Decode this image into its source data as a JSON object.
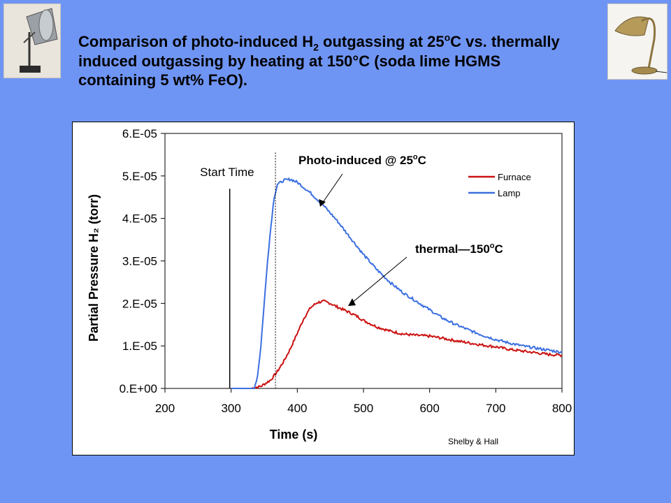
{
  "title": {
    "part1": "Comparison of photo-induced H",
    "sub": "2",
    "part2": " outgassing at 25",
    "sup": "o",
    "part3": "C vs. thermally induced outgassing by heating at 150°C (soda lime HGMS containing 5 wt% FeO)."
  },
  "images": {
    "left": "clamp-lamp-image",
    "right": "desk-lamp-image"
  },
  "chart_data": {
    "type": "line",
    "xlabel": "Time (s)",
    "ylabel": "Partial Pressure H₂ (torr)",
    "xlim": [
      200,
      800
    ],
    "ylim": [
      0,
      6e-05
    ],
    "x_ticks": [
      "200",
      "300",
      "400",
      "500",
      "600",
      "700",
      "800"
    ],
    "y_ticks": [
      "0.E+00",
      "1.E-05",
      "2.E-05",
      "3.E-05",
      "4.E-05",
      "5.E-05",
      "6.E-05"
    ],
    "legend_position": "top-right",
    "series": [
      {
        "name": "Furnace",
        "color": "#cc1111",
        "x": [
          300,
          330,
          345,
          360,
          370,
          380,
          390,
          400,
          410,
          420,
          430,
          440,
          450,
          460,
          470,
          480,
          490,
          500,
          520,
          540,
          560,
          580,
          600,
          620,
          640,
          660,
          680,
          700,
          720,
          740,
          760,
          780,
          800
        ],
        "y": [
          0,
          0,
          5e-07,
          2e-06,
          4e-06,
          6.5e-06,
          9.5e-06,
          1.3e-05,
          1.65e-05,
          1.9e-05,
          2.02e-05,
          2.05e-05,
          2e-05,
          1.92e-05,
          1.85e-05,
          1.78e-05,
          1.7e-05,
          1.6e-05,
          1.45e-05,
          1.35e-05,
          1.28e-05,
          1.25e-05,
          1.23e-05,
          1.18e-05,
          1.12e-05,
          1.07e-05,
          1.02e-05,
          9.8e-06,
          9.2e-06,
          8.8e-06,
          8.4e-06,
          8e-06,
          7.8e-06
        ]
      },
      {
        "name": "Lamp",
        "color": "#3a6fe0",
        "x": [
          300,
          335,
          340,
          345,
          350,
          355,
          360,
          365,
          370,
          375,
          380,
          390,
          400,
          420,
          440,
          460,
          480,
          500,
          520,
          540,
          560,
          580,
          600,
          620,
          640,
          660,
          680,
          700,
          720,
          740,
          760,
          780,
          800
        ],
        "y": [
          0,
          0,
          3e-06,
          1e-05,
          2e-05,
          3e-05,
          3.8e-05,
          4.5e-05,
          4.8e-05,
          4.85e-05,
          4.9e-05,
          4.92e-05,
          4.85e-05,
          4.6e-05,
          4.3e-05,
          3.95e-05,
          3.55e-05,
          3.15e-05,
          2.8e-05,
          2.5e-05,
          2.25e-05,
          2.05e-05,
          1.85e-05,
          1.65e-05,
          1.5e-05,
          1.37e-05,
          1.25e-05,
          1.15e-05,
          1.07e-05,
          1e-05,
          9.5e-06,
          9e-06,
          8.5e-06
        ]
      }
    ],
    "start_time_label": "Start Time",
    "start_time_x": 300,
    "annotations": [
      {
        "text": "Photo-induced @ 25",
        "sup": "o",
        "suffix": "C"
      },
      {
        "text": "thermal—150",
        "sup": "o",
        "suffix": "C"
      }
    ],
    "credit": "Shelby & Hall"
  }
}
